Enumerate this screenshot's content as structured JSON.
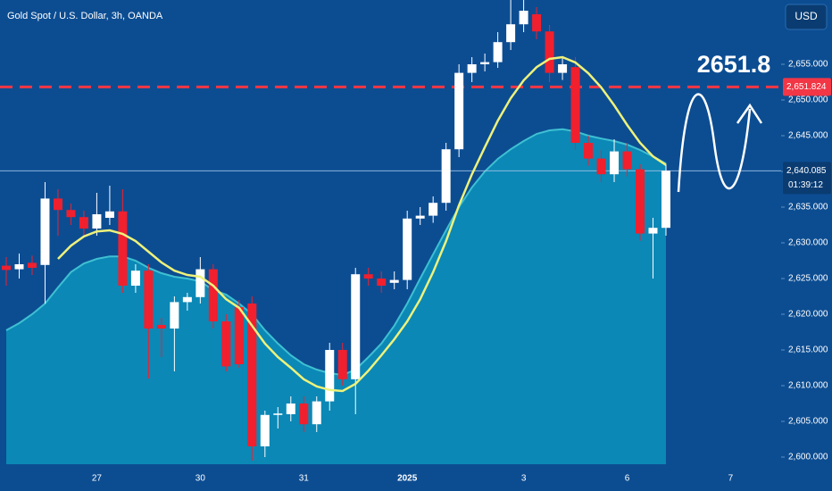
{
  "chart_data": {
    "type": "candlestick",
    "title": "Gold Spot / U.S. Dollar, 3h, OANDA",
    "currency": "USD",
    "categories": [
      null,
      null,
      null,
      null,
      null,
      null,
      null,
      "27",
      null,
      null,
      null,
      null,
      null,
      null,
      null,
      "30",
      null,
      null,
      null,
      null,
      null,
      null,
      null,
      "31",
      null,
      null,
      null,
      null,
      null,
      null,
      null,
      "2025",
      null,
      null,
      null,
      null,
      null,
      null,
      null,
      null,
      "3",
      null,
      null,
      null,
      null,
      null,
      null,
      null,
      "6",
      null,
      null,
      null,
      null,
      null,
      null,
      null,
      "7"
    ],
    "open": [
      2626.8,
      2626.3,
      2627.2,
      2626.9,
      2636.2,
      2634.6,
      2633.6,
      2632,
      2633.5,
      2634.4,
      2624,
      2626.1,
      2618.5,
      2618,
      2621.7,
      2622.4,
      2626.3,
      2619,
      2621,
      2621.5,
      2601.5,
      2605.9,
      2606,
      2607.5,
      2604.6,
      2607.8,
      2615,
      2610.9,
      2625.6,
      2625,
      2624.4,
      2624.8,
      2633.4,
      2633.8,
      2635.6,
      2643.1,
      2653.8,
      2655,
      2655.3,
      2658.1,
      2660.6,
      2662,
      2659.6,
      2653.8,
      2654.6,
      2644,
      2641.8,
      2639.6,
      2642.8,
      2640.3,
      2631.3,
      2632.1,
      null,
      null,
      null,
      null,
      null
    ],
    "high": [
      2628,
      2628.5,
      2628.2,
      2638.5,
      2637.5,
      2635.5,
      2634.5,
      2637,
      2638,
      2637.5,
      2627,
      2627,
      2619.5,
      2622.5,
      2623,
      2628,
      2627,
      2620,
      2622,
      2622.5,
      2606.5,
      2607,
      2608.5,
      2608.5,
      2608.5,
      2616,
      2616,
      2626.5,
      2626.5,
      2626,
      2626,
      2634.5,
      2635,
      2636.5,
      2644,
      2655,
      2656,
      2656.5,
      2659.5,
      2664,
      2664,
      2663,
      2660.5,
      2656,
      2656,
      2645,
      2643,
      2644.5,
      2644,
      2641,
      2633.5,
      2641,
      null,
      null,
      null,
      null,
      null
    ],
    "low": [
      2624,
      2625,
      2625.5,
      2621.5,
      2631,
      2632.5,
      2631,
      2631,
      2632.5,
      2623,
      2623,
      2611,
      2614,
      2612,
      2620.5,
      2621.5,
      2618,
      2612,
      2612.5,
      2599.5,
      2600,
      2604,
      2605,
      2603.5,
      2603.5,
      2606.5,
      2610,
      2606,
      2624,
      2623,
      2623.5,
      2623.5,
      2632.5,
      2632.8,
      2634.5,
      2642,
      2652.5,
      2654,
      2654.5,
      2657,
      2659.5,
      2658.5,
      2652.5,
      2652.8,
      2643,
      2640.8,
      2638.5,
      2638.5,
      2639.3,
      2630.3,
      2625,
      2631,
      null,
      null,
      null,
      null,
      null
    ],
    "close": [
      2626.2,
      2627,
      2626.5,
      2636.2,
      2634.6,
      2633.6,
      2632,
      2634,
      2634.4,
      2624,
      2626.1,
      2618,
      2618,
      2621.7,
      2622.4,
      2626.3,
      2619,
      2612.7,
      2613,
      2601.5,
      2605.9,
      2606.1,
      2607.5,
      2604.6,
      2607.8,
      2615,
      2610.9,
      2625.6,
      2625,
      2624,
      2624.8,
      2633.4,
      2633.8,
      2635.6,
      2643.1,
      2653.8,
      2655,
      2655.3,
      2658.1,
      2660.6,
      2662.5,
      2659.6,
      2653.8,
      2655,
      2644,
      2641.8,
      2639.6,
      2642.8,
      2640.3,
      2631.3,
      2632.1,
      2640.1,
      null,
      null,
      null,
      null,
      null
    ],
    "up_color": "#ffffff",
    "down_color": "#f0202e",
    "ma": {
      "color": "#eef27a",
      "values": [
        null,
        null,
        null,
        null,
        2627.75,
        2629.6,
        2630.9,
        2631.6,
        2631.75,
        2631.25,
        2630.25,
        2628.75,
        2627.25,
        2626.1,
        2625.5,
        2625.25,
        2624,
        2622.1,
        2620.9,
        2618.4,
        2615.9,
        2614,
        2612.5,
        2610.9,
        2609.9,
        2609.4,
        2609.25,
        2610.25,
        2612.1,
        2614.25,
        2616.5,
        2619,
        2622.1,
        2625.9,
        2630.25,
        2635.25,
        2639.6,
        2643.4,
        2647.1,
        2650.25,
        2652.75,
        2654.6,
        2655.75,
        2656,
        2655.25,
        2653.75,
        2651.75,
        2649.25,
        2646.5,
        2644,
        2642.1,
        2640.9,
        null,
        null,
        null,
        null,
        null
      ]
    },
    "area": {
      "color": "#0b88b6",
      "edge_color": "#3fc0d2",
      "values": [
        2617.75,
        2618.75,
        2620,
        2621.5,
        2623.75,
        2625.9,
        2627.1,
        2627.75,
        2628.1,
        2628.1,
        2627.5,
        2626.5,
        2625.75,
        2625.25,
        2625,
        2624.6,
        2623.4,
        2622.75,
        2621.5,
        2620,
        2617.75,
        2615.9,
        2614.25,
        2613,
        2612.25,
        2611.75,
        2611.5,
        2612.25,
        2614,
        2615.9,
        2618.4,
        2621.5,
        2625,
        2628.4,
        2631.75,
        2635,
        2637.75,
        2640,
        2641.75,
        2643.1,
        2644.25,
        2645.25,
        2645.75,
        2645.9,
        2645.6,
        2645,
        2644.6,
        2644.25,
        2643.75,
        2643,
        2642.1,
        2641.1,
        null,
        null,
        null,
        null,
        null
      ]
    },
    "ylim": [
      2599,
      2664
    ],
    "yticks": [
      {
        "value": 2600,
        "label": "2,600.000"
      },
      {
        "value": 2605,
        "label": "2,605.000"
      },
      {
        "value": 2610,
        "label": "2,610.000"
      },
      {
        "value": 2615,
        "label": "2,615.000"
      },
      {
        "value": 2620,
        "label": "2,620.000"
      },
      {
        "value": 2625,
        "label": "2,625.000"
      },
      {
        "value": 2630,
        "label": "2,630.000"
      },
      {
        "value": 2635,
        "label": "2,635.000"
      },
      {
        "value": 2640,
        "label": "2,640.000"
      },
      {
        "value": 2645,
        "label": "2,645.000"
      },
      {
        "value": 2650,
        "label": "2,650.000"
      },
      {
        "value": 2655,
        "label": "2,655.000"
      }
    ],
    "lines": [
      {
        "value": 2651.824,
        "label": "2,651.824",
        "color": "#f23645",
        "style": "dashed"
      },
      {
        "value": 2640.085,
        "label": "2,640.085",
        "countdown": "01:39:12",
        "color": "#9fc3e6",
        "style": "solid"
      }
    ],
    "annotation": {
      "text": "2651.8",
      "value": 2651.8
    }
  }
}
